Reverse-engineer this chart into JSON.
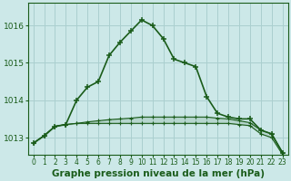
{
  "title": "Graphe pression niveau de la mer (hPa)",
  "background_color": "#cce8e8",
  "grid_color": "#aacfcf",
  "line_color": "#1a5c1a",
  "x_values": [
    0,
    1,
    2,
    3,
    4,
    5,
    6,
    7,
    8,
    9,
    10,
    11,
    12,
    13,
    14,
    15,
    16,
    17,
    18,
    19,
    20,
    21,
    22,
    23
  ],
  "series_main": [
    1012.85,
    1013.05,
    1013.3,
    1013.35,
    1014.0,
    1014.35,
    1014.5,
    1015.2,
    1015.55,
    1015.85,
    1016.15,
    1016.0,
    1015.65,
    1015.1,
    1015.0,
    1014.9,
    1014.1,
    1013.65,
    1013.55,
    1013.5,
    1013.5,
    1013.2,
    1013.1,
    1012.6
  ],
  "series_min": [
    1012.85,
    1013.05,
    1013.3,
    1013.35,
    1013.38,
    1013.38,
    1013.38,
    1013.38,
    1013.38,
    1013.38,
    1013.38,
    1013.38,
    1013.38,
    1013.38,
    1013.38,
    1013.38,
    1013.38,
    1013.38,
    1013.38,
    1013.35,
    1013.32,
    1013.1,
    1013.0,
    1012.55
  ],
  "series_max": [
    1012.85,
    1013.05,
    1013.3,
    1013.35,
    1013.38,
    1013.42,
    1013.45,
    1013.48,
    1013.5,
    1013.52,
    1013.55,
    1013.55,
    1013.55,
    1013.55,
    1013.55,
    1013.55,
    1013.55,
    1013.52,
    1013.5,
    1013.45,
    1013.4,
    1013.2,
    1013.1,
    1012.6
  ],
  "ylim": [
    1012.55,
    1016.6
  ],
  "yticks": [
    1013,
    1014,
    1015,
    1016
  ],
  "tick_fontsize": 6.5,
  "x_tick_fontsize": 5.5,
  "title_fontsize": 7.5
}
